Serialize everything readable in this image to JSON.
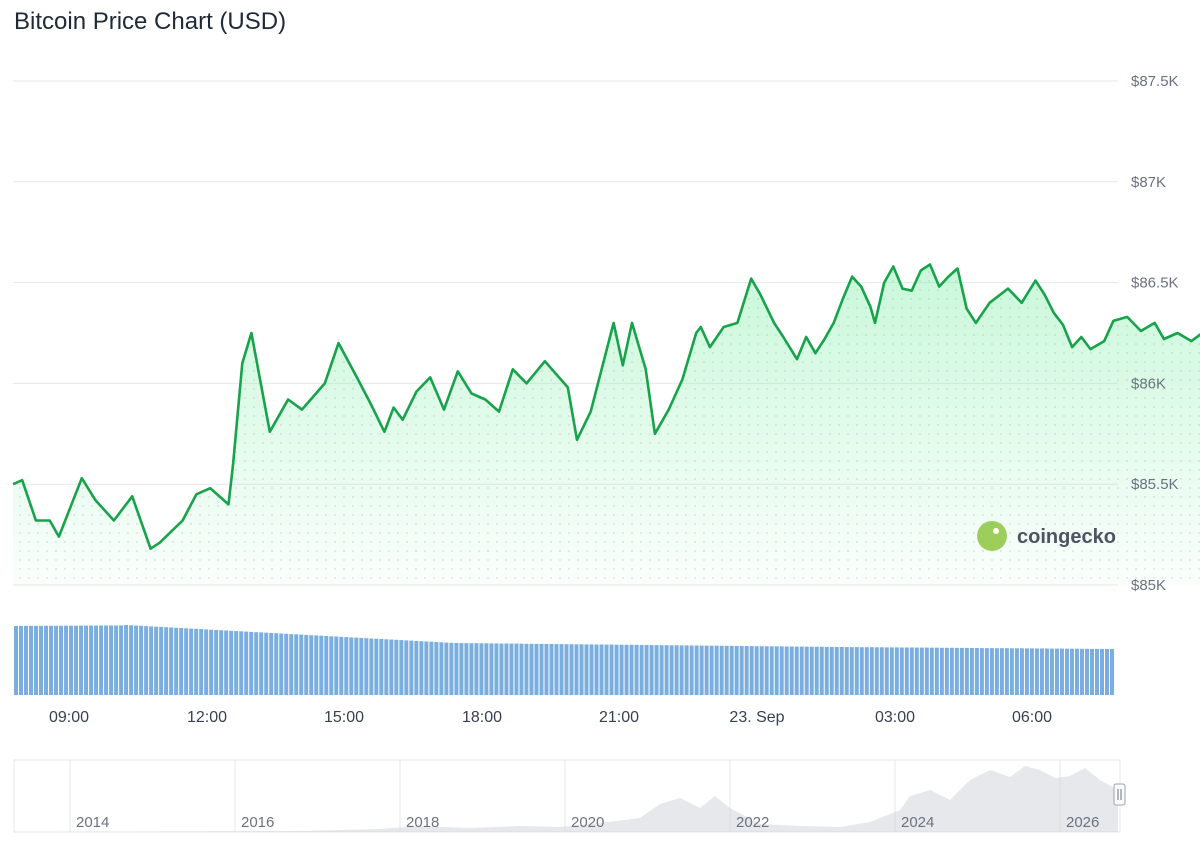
{
  "title": "Bitcoin Price Chart (USD)",
  "brand": {
    "name": "coingecko",
    "icon": "gecko-logo-icon",
    "color": "#8dc63f"
  },
  "colors": {
    "line": "#16a34a",
    "fill": "#86efac",
    "volume": "#7aaede",
    "grid": "#e5e7eb",
    "navigator": "#d1d5db"
  },
  "chart_data": {
    "type": "line",
    "title": "Bitcoin Price Chart (USD)",
    "xlabel": "",
    "ylabel": "",
    "y_ticks": [
      "$85K",
      "$85.5K",
      "$86K",
      "$86.5K",
      "$87K",
      "$87.5K"
    ],
    "ylim": [
      85000,
      87500
    ],
    "x_ticks": [
      "09:00",
      "12:00",
      "15:00",
      "18:00",
      "21:00",
      "23. Sep",
      "03:00",
      "06:00"
    ],
    "x_range_hours": [
      7.8,
      31.9
    ],
    "grid": true,
    "series": [
      {
        "values": [
          [
            7.8,
            85500
          ],
          [
            8.0,
            85520
          ],
          [
            8.3,
            85320
          ],
          [
            8.6,
            85320
          ],
          [
            8.8,
            85240
          ],
          [
            9.3,
            85530
          ],
          [
            9.6,
            85420
          ],
          [
            10.0,
            85320
          ],
          [
            10.4,
            85440
          ],
          [
            10.8,
            85180
          ],
          [
            11.0,
            85210
          ],
          [
            11.5,
            85320
          ],
          [
            11.8,
            85450
          ],
          [
            12.1,
            85480
          ],
          [
            12.5,
            85400
          ],
          [
            12.6,
            85600
          ],
          [
            12.8,
            86100
          ],
          [
            13.0,
            86250
          ],
          [
            13.4,
            85760
          ],
          [
            13.8,
            85920
          ],
          [
            14.1,
            85870
          ],
          [
            14.6,
            86000
          ],
          [
            14.9,
            86200
          ],
          [
            15.3,
            86030
          ],
          [
            15.6,
            85900
          ],
          [
            15.9,
            85760
          ],
          [
            16.1,
            85880
          ],
          [
            16.3,
            85820
          ],
          [
            16.6,
            85960
          ],
          [
            16.9,
            86030
          ],
          [
            17.2,
            85870
          ],
          [
            17.5,
            86060
          ],
          [
            17.8,
            85950
          ],
          [
            18.1,
            85920
          ],
          [
            18.4,
            85860
          ],
          [
            18.7,
            86070
          ],
          [
            19.0,
            86000
          ],
          [
            19.4,
            86110
          ],
          [
            19.9,
            85980
          ],
          [
            20.1,
            85720
          ],
          [
            20.4,
            85860
          ],
          [
            20.9,
            86300
          ],
          [
            21.1,
            86090
          ],
          [
            21.3,
            86300
          ],
          [
            21.6,
            86070
          ],
          [
            21.8,
            85750
          ],
          [
            22.1,
            85870
          ],
          [
            22.4,
            86020
          ],
          [
            22.7,
            86250
          ],
          [
            22.8,
            86280
          ],
          [
            23.0,
            86180
          ],
          [
            23.3,
            86280
          ],
          [
            23.6,
            86300
          ],
          [
            23.9,
            86520
          ],
          [
            24.1,
            86440
          ],
          [
            24.4,
            86300
          ],
          [
            24.6,
            86230
          ],
          [
            24.9,
            86120
          ],
          [
            25.1,
            86230
          ],
          [
            25.3,
            86150
          ],
          [
            25.5,
            86220
          ],
          [
            25.7,
            86300
          ],
          [
            25.9,
            86420
          ],
          [
            26.1,
            86530
          ],
          [
            26.3,
            86480
          ],
          [
            26.5,
            86380
          ],
          [
            26.6,
            86300
          ],
          [
            26.8,
            86500
          ],
          [
            27.0,
            86580
          ],
          [
            27.2,
            86470
          ],
          [
            27.4,
            86460
          ],
          [
            27.6,
            86560
          ],
          [
            27.8,
            86590
          ],
          [
            28.0,
            86480
          ],
          [
            28.2,
            86530
          ],
          [
            28.4,
            86570
          ],
          [
            28.6,
            86370
          ],
          [
            28.8,
            86300
          ],
          [
            29.1,
            86400
          ],
          [
            29.5,
            86470
          ],
          [
            29.8,
            86400
          ],
          [
            30.1,
            86510
          ],
          [
            30.3,
            86440
          ],
          [
            30.5,
            86350
          ],
          [
            30.7,
            86290
          ],
          [
            30.9,
            86180
          ],
          [
            31.1,
            86230
          ],
          [
            31.3,
            86170
          ],
          [
            31.6,
            86210
          ],
          [
            31.8,
            86310
          ],
          [
            32.1,
            86330
          ],
          [
            32.4,
            86260
          ],
          [
            32.7,
            86300
          ],
          [
            32.9,
            86220
          ],
          [
            33.2,
            86250
          ],
          [
            33.5,
            86210
          ],
          [
            33.8,
            86260
          ],
          [
            34.0,
            86180
          ]
        ]
      }
    ],
    "volume_bars": 220,
    "navigator": {
      "x_ticks": [
        "2014",
        "2016",
        "2018",
        "2020",
        "2022",
        "2024",
        "2026"
      ]
    }
  }
}
